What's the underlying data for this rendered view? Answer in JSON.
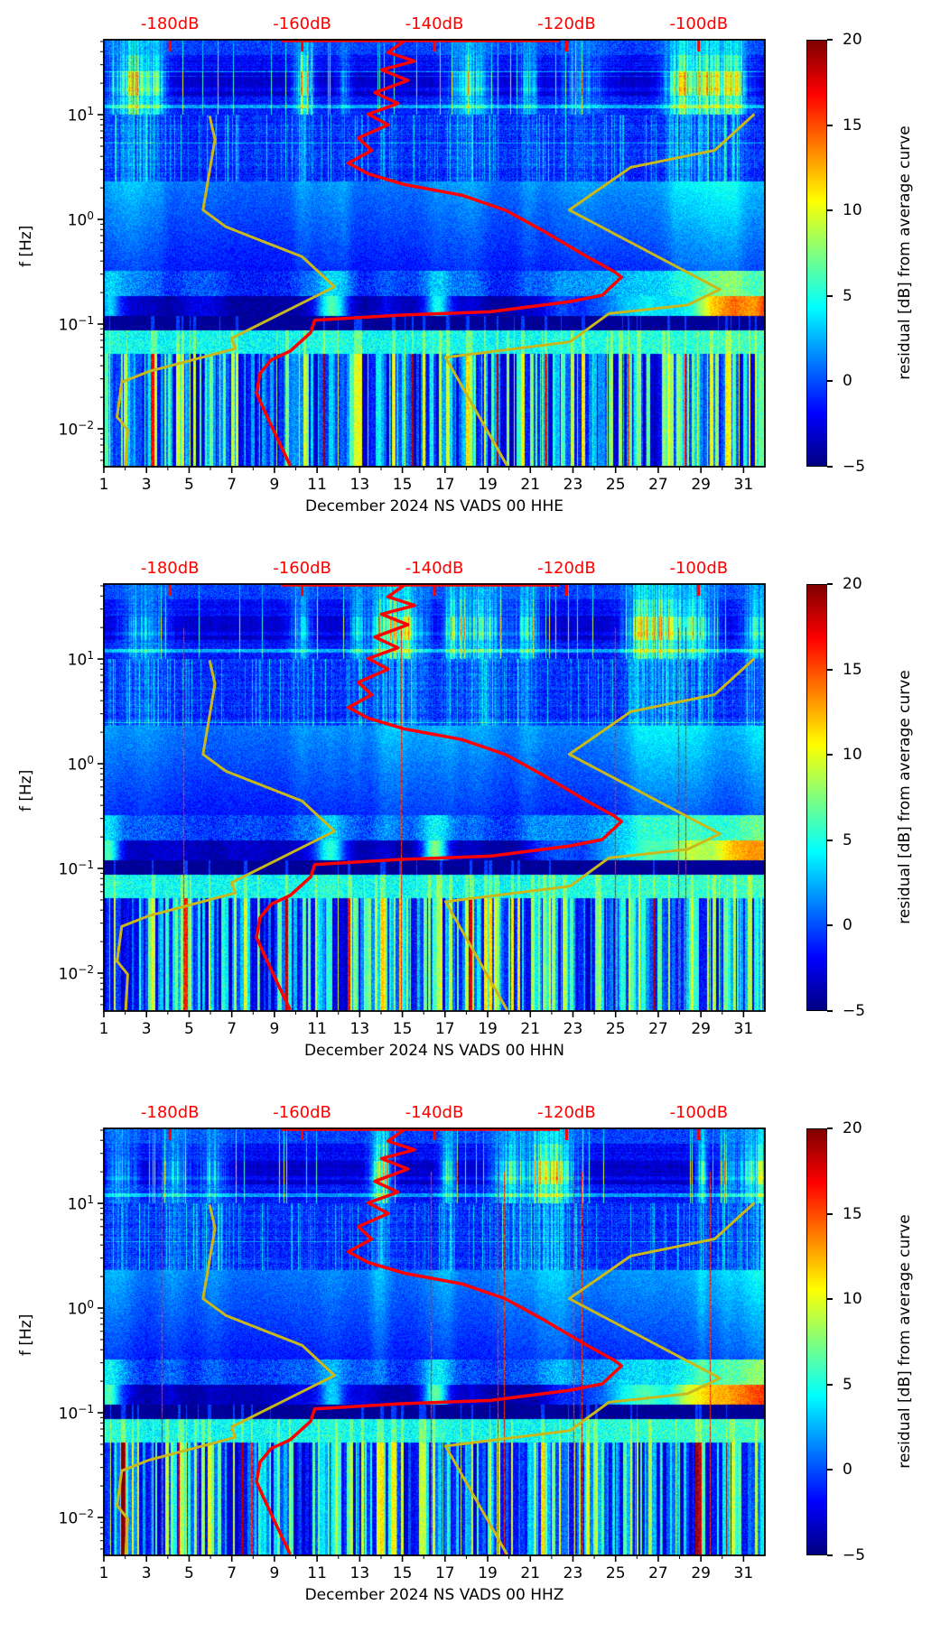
{
  "chart_data": {
    "type": "heatmap",
    "subtype": "seismic power residual spectrograms with PSD overlays",
    "colormap": "jet",
    "value_label": "residual [dB] from average curve",
    "value_range": [
      -5,
      20
    ],
    "colorbar_ticks": [
      "20",
      "15",
      "10",
      "5",
      "0",
      "−5"
    ],
    "colorbar_tick_values": [
      20,
      15,
      10,
      5,
      0,
      -5
    ],
    "y_label": "f [Hz]",
    "y_scale": "log",
    "y_range_hz": [
      0.00434,
      52
    ],
    "y_ticks": [
      {
        "base": "10",
        "exp": "1",
        "value": 10
      },
      {
        "base": "10",
        "exp": "0",
        "value": 1
      },
      {
        "base": "10",
        "exp": "−1",
        "value": 0.1
      },
      {
        "base": "10",
        "exp": "−2",
        "value": 0.01
      }
    ],
    "x_range_days": [
      1,
      32
    ],
    "x_ticks": [
      "1",
      "3",
      "5",
      "7",
      "9",
      "11",
      "13",
      "15",
      "17",
      "19",
      "21",
      "23",
      "25",
      "27",
      "29",
      "31"
    ],
    "x_tick_values": [
      1,
      3,
      5,
      7,
      9,
      11,
      13,
      15,
      17,
      19,
      21,
      23,
      25,
      27,
      29,
      31
    ],
    "top_axis": {
      "unit": "dB",
      "range": [
        -190,
        -90
      ],
      "ticks": [
        "-180dB",
        "-160dB",
        "-140dB",
        "-120dB",
        "-100dB"
      ],
      "tick_values": [
        -180,
        -160,
        -140,
        -120,
        -100
      ],
      "color": "#ff0000"
    },
    "panels": [
      {
        "title": "December 2024 NS VADS 00 HHE",
        "network": "NS",
        "station": "VADS",
        "location": "00",
        "channel": "HHE"
      },
      {
        "title": "December 2024 NS VADS 00 HHN",
        "network": "NS",
        "station": "VADS",
        "location": "00",
        "channel": "HHN"
      },
      {
        "title": "December 2024 NS VADS 00 HHZ",
        "network": "NS",
        "station": "VADS",
        "location": "00",
        "channel": "HHZ"
      }
    ],
    "curves": {
      "average": {
        "name": "station average PSD curve",
        "color": "#ff0000",
        "width": 3.5,
        "points_db_hz": [
          [
            -121,
            51.0
          ],
          [
            -163,
            51.0
          ],
          [
            -144.5,
            51.0
          ],
          [
            -147,
            39.3
          ],
          [
            -143,
            32.5
          ],
          [
            -148,
            26.8
          ],
          [
            -144,
            21.3
          ],
          [
            -149,
            16.2
          ],
          [
            -145.5,
            12.8
          ],
          [
            -150,
            10.1
          ],
          [
            -147,
            8.0
          ],
          [
            -151.5,
            6.0
          ],
          [
            -149.5,
            4.55
          ],
          [
            -153,
            3.45
          ],
          [
            -150,
            2.72
          ],
          [
            -144.5,
            2.15
          ],
          [
            -135.8,
            1.7
          ],
          [
            -129.2,
            1.22
          ],
          [
            -123.3,
            0.763
          ],
          [
            -116.9,
            0.44
          ],
          [
            -112.8,
            0.317
          ],
          [
            -111.7,
            0.281
          ],
          [
            -114.6,
            0.189
          ],
          [
            -119.5,
            0.164
          ],
          [
            -131.5,
            0.131
          ],
          [
            -145,
            0.122
          ],
          [
            -158.1,
            0.109
          ],
          [
            -158.7,
            0.0831
          ],
          [
            -161.8,
            0.0553
          ],
          [
            -164.7,
            0.0455
          ],
          [
            -166.4,
            0.0337
          ],
          [
            -166.9,
            0.0219
          ],
          [
            -165.9,
            0.0158
          ],
          [
            -163.8,
            0.00817
          ],
          [
            -161.8,
            0.00444
          ]
        ]
      },
      "low_noise_model": {
        "name": "low noise model curve",
        "color": "#c9b81c",
        "width": 3,
        "points_db_hz": [
          [
            -174,
            9.73
          ],
          [
            -173.2,
            5.8
          ],
          [
            -175,
            1.23
          ],
          [
            -171.5,
            0.847
          ],
          [
            -160,
            0.44
          ],
          [
            -155.1,
            0.227
          ],
          [
            -170.7,
            0.0729
          ],
          [
            -170.1,
            0.0583
          ],
          [
            -183.2,
            0.0353
          ],
          [
            -187.3,
            0.0279
          ],
          [
            -188,
            0.013
          ],
          [
            -186.4,
            0.00975
          ],
          [
            -186.7,
            0.00444
          ]
        ]
      },
      "high_noise_model": {
        "name": "high noise model curve",
        "color": "#c9b81c",
        "width": 3,
        "points_db_hz": [
          [
            -91.6,
            10.1
          ],
          [
            -97.6,
            4.57
          ],
          [
            -110.3,
            3.14
          ],
          [
            -119.6,
            1.23
          ],
          [
            -96.8,
            0.214
          ],
          [
            -101.7,
            0.152
          ],
          [
            -113.6,
            0.126
          ],
          [
            -119.5,
            0.0675
          ],
          [
            -138.3,
            0.0481
          ],
          [
            -129,
            0.00444
          ]
        ]
      }
    }
  }
}
